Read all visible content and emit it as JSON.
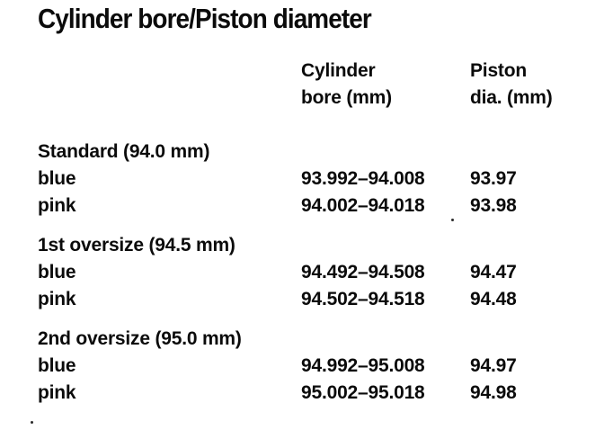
{
  "title": "Cylinder bore/Piston diameter",
  "table": {
    "headers": [
      {
        "line1": "Cylinder",
        "line2": "bore (mm)"
      },
      {
        "line1": "Piston",
        "line2": "dia. (mm)"
      }
    ],
    "groups": [
      {
        "label": "Standard (94.0 mm)",
        "rows": [
          {
            "color": "blue",
            "bore": "93.992–94.008",
            "piston": "93.97"
          },
          {
            "color": "pink",
            "bore": "94.002–94.018",
            "piston": "93.98"
          }
        ]
      },
      {
        "label": "1st oversize (94.5 mm)",
        "rows": [
          {
            "color": "blue",
            "bore": "94.492–94.508",
            "piston": "94.47"
          },
          {
            "color": "pink",
            "bore": "94.502–94.518",
            "piston": "94.48"
          }
        ]
      },
      {
        "label": "2nd oversize (95.0 mm)",
        "rows": [
          {
            "color": "blue",
            "bore": "94.992–95.008",
            "piston": "94.97"
          },
          {
            "color": "pink",
            "bore": "95.002–95.018",
            "piston": "94.98"
          }
        ]
      }
    ]
  }
}
